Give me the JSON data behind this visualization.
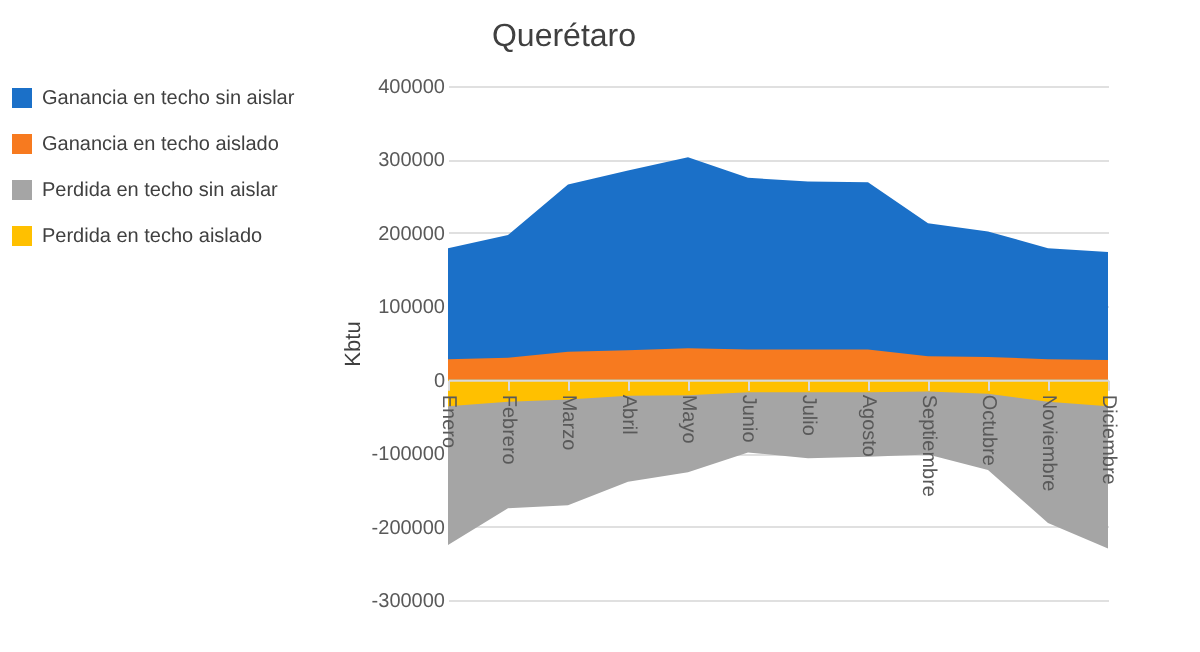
{
  "chart_data": {
    "type": "area",
    "title": "Querétaro",
    "ylabel": "Kbtu",
    "categories": [
      "Enero",
      "Febrero",
      "Marzo",
      "Abril",
      "Mayo",
      "Junio",
      "Julio",
      "Agosto",
      "Septiembre",
      "Octubre",
      "Noviembre",
      "Diciembre"
    ],
    "series": [
      {
        "name": "Ganancia  en techo sin aislar",
        "color": "#1b70c8",
        "values": [
          179000,
          197000,
          266000,
          285000,
          303000,
          275000,
          270000,
          269000,
          213000,
          202000,
          179000,
          174000
        ]
      },
      {
        "name": "Ganancia  en techo aislado",
        "color": "#f77a1f",
        "values": [
          28000,
          30000,
          38000,
          40000,
          43000,
          41000,
          41000,
          41000,
          32000,
          31000,
          28000,
          27000
        ]
      },
      {
        "name": "Perdida  en techo sin aislar",
        "color": "#a5a5a5",
        "values": [
          -225000,
          -175000,
          -171000,
          -139000,
          -126000,
          -99000,
          -107000,
          -105000,
          -102000,
          -123000,
          -195000,
          -230000
        ]
      },
      {
        "name": "Perdida  en techo aislado",
        "color": "#ffc000",
        "values": [
          -36000,
          -30000,
          -27000,
          -22000,
          -21000,
          -17000,
          -17000,
          -17000,
          -16000,
          -19000,
          -30000,
          -36000
        ]
      }
    ],
    "ylim": [
      -300000,
      400000
    ],
    "yticks": [
      -300000,
      -200000,
      -100000,
      0,
      100000,
      200000,
      300000,
      400000
    ],
    "grid": "y",
    "legend": "left"
  }
}
